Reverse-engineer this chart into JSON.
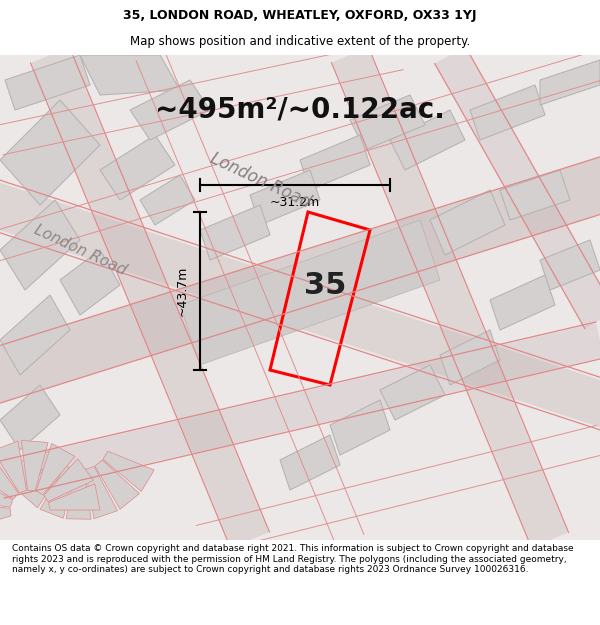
{
  "title_line1": "35, LONDON ROAD, WHEATLEY, OXFORD, OX33 1YJ",
  "title_line2": "Map shows position and indicative extent of the property.",
  "area_text": "~495m²/~0.122ac.",
  "dim_height": "~43.7m",
  "dim_width": "~31.2m",
  "number_label": "35",
  "footer_text": "Contains OS data © Crown copyright and database right 2021. This information is subject to Crown copyright and database rights 2023 and is reproduced with the permission of HM Land Registry. The polygons (including the associated geometry, namely x, y co-ordinates) are subject to Crown copyright and database rights 2023 Ordnance Survey 100026316.",
  "property_color": "red",
  "title_bg": "#ffffff",
  "footer_bg": "#ffffff",
  "map_area_bg": "#eae6e6",
  "building_fill": "#d4d0d0",
  "building_edge": "#b8b4b4"
}
